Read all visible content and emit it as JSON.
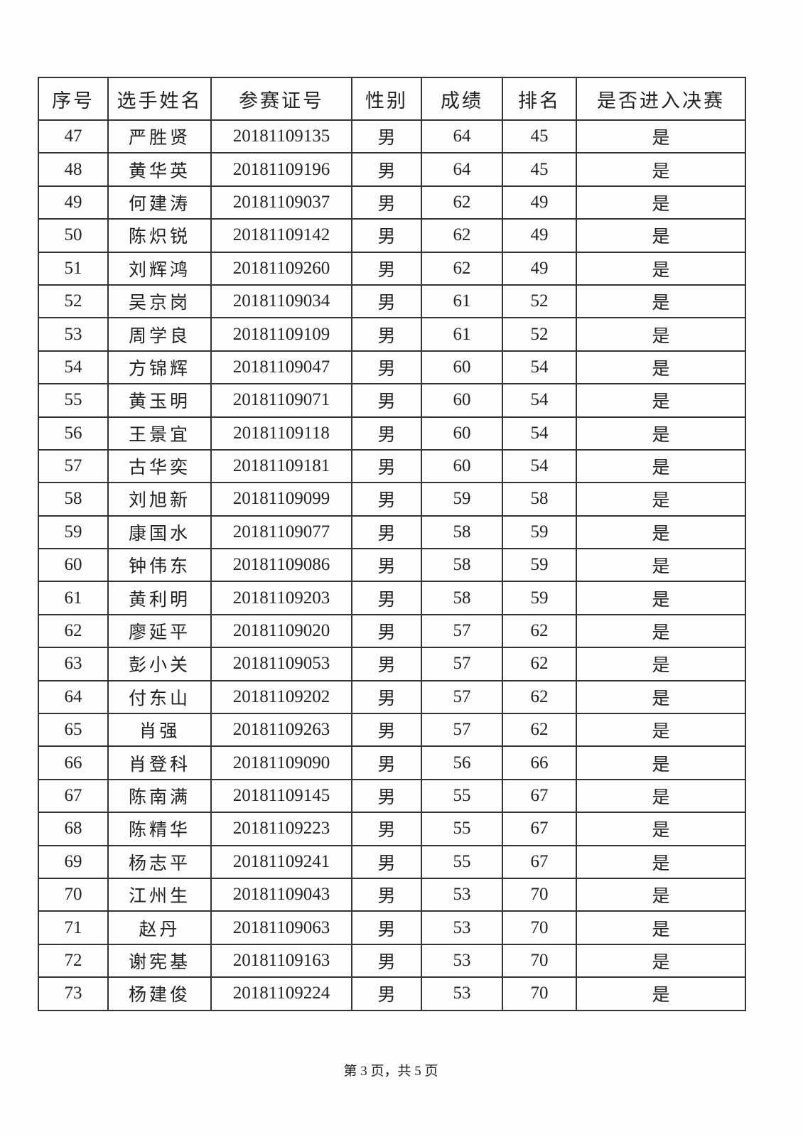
{
  "table": {
    "headers": [
      "序号",
      "选手姓名",
      "参赛证号",
      "性别",
      "成绩",
      "排名",
      "是否进入决赛"
    ],
    "rows": [
      [
        "47",
        "严胜贤",
        "20181109135",
        "男",
        "64",
        "45",
        "是"
      ],
      [
        "48",
        "黄华英",
        "20181109196",
        "男",
        "64",
        "45",
        "是"
      ],
      [
        "49",
        "何建涛",
        "20181109037",
        "男",
        "62",
        "49",
        "是"
      ],
      [
        "50",
        "陈炽锐",
        "20181109142",
        "男",
        "62",
        "49",
        "是"
      ],
      [
        "51",
        "刘辉鸿",
        "20181109260",
        "男",
        "62",
        "49",
        "是"
      ],
      [
        "52",
        "吴京岗",
        "20181109034",
        "男",
        "61",
        "52",
        "是"
      ],
      [
        "53",
        "周学良",
        "20181109109",
        "男",
        "61",
        "52",
        "是"
      ],
      [
        "54",
        "方锦辉",
        "20181109047",
        "男",
        "60",
        "54",
        "是"
      ],
      [
        "55",
        "黄玉明",
        "20181109071",
        "男",
        "60",
        "54",
        "是"
      ],
      [
        "56",
        "王景宜",
        "20181109118",
        "男",
        "60",
        "54",
        "是"
      ],
      [
        "57",
        "古华奕",
        "20181109181",
        "男",
        "60",
        "54",
        "是"
      ],
      [
        "58",
        "刘旭新",
        "20181109099",
        "男",
        "59",
        "58",
        "是"
      ],
      [
        "59",
        "康国水",
        "20181109077",
        "男",
        "58",
        "59",
        "是"
      ],
      [
        "60",
        "钟伟东",
        "20181109086",
        "男",
        "58",
        "59",
        "是"
      ],
      [
        "61",
        "黄利明",
        "20181109203",
        "男",
        "58",
        "59",
        "是"
      ],
      [
        "62",
        "廖延平",
        "20181109020",
        "男",
        "57",
        "62",
        "是"
      ],
      [
        "63",
        "彭小关",
        "20181109053",
        "男",
        "57",
        "62",
        "是"
      ],
      [
        "64",
        "付东山",
        "20181109202",
        "男",
        "57",
        "62",
        "是"
      ],
      [
        "65",
        "肖强",
        "20181109263",
        "男",
        "57",
        "62",
        "是"
      ],
      [
        "66",
        "肖登科",
        "20181109090",
        "男",
        "56",
        "66",
        "是"
      ],
      [
        "67",
        "陈南满",
        "20181109145",
        "男",
        "55",
        "67",
        "是"
      ],
      [
        "68",
        "陈精华",
        "20181109223",
        "男",
        "55",
        "67",
        "是"
      ],
      [
        "69",
        "杨志平",
        "20181109241",
        "男",
        "55",
        "67",
        "是"
      ],
      [
        "70",
        "江州生",
        "20181109043",
        "男",
        "53",
        "70",
        "是"
      ],
      [
        "71",
        "赵丹",
        "20181109063",
        "男",
        "53",
        "70",
        "是"
      ],
      [
        "72",
        "谢宪基",
        "20181109163",
        "男",
        "53",
        "70",
        "是"
      ],
      [
        "73",
        "杨建俊",
        "20181109224",
        "男",
        "53",
        "70",
        "是"
      ]
    ]
  },
  "footer": {
    "page_text": "第 3 页，共 5 页"
  }
}
